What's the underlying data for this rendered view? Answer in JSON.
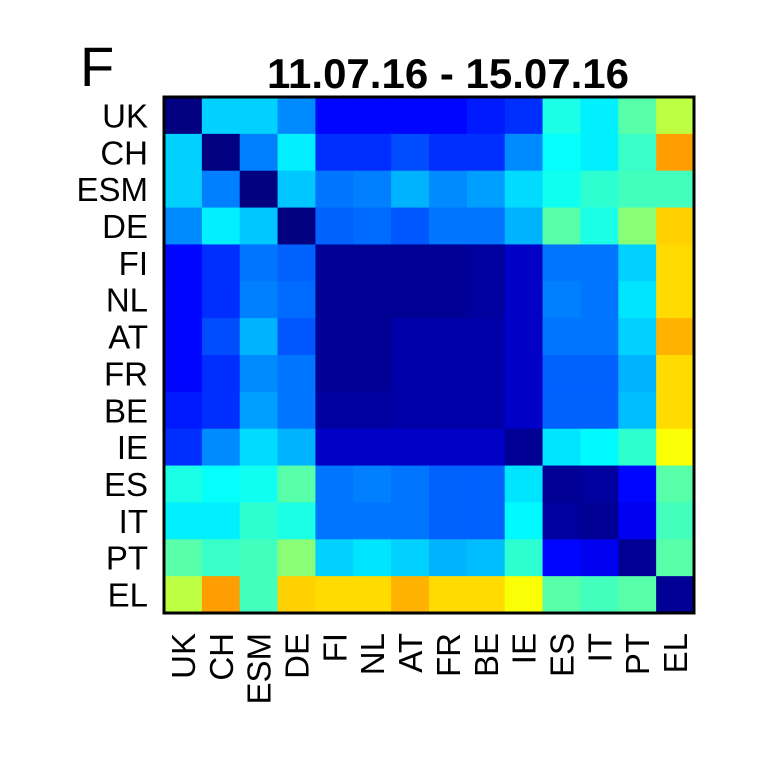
{
  "panel_label": "F",
  "chart_data": {
    "type": "heatmap",
    "title": "11.07.16 - 15.07.16",
    "xlabel": "",
    "ylabel": "",
    "categories": [
      "UK",
      "CH",
      "ESM",
      "DE",
      "FI",
      "NL",
      "AT",
      "FR",
      "BE",
      "IE",
      "ES",
      "IT",
      "PT",
      "EL"
    ],
    "colormap": "jet",
    "value_range": [
      0,
      1
    ],
    "colorbar": false,
    "grid": false,
    "matrix": [
      [
        0.0,
        0.33,
        0.33,
        0.26,
        0.13,
        0.13,
        0.13,
        0.13,
        0.15,
        0.17,
        0.4,
        0.36,
        0.46,
        0.56
      ],
      [
        0.33,
        0.0,
        0.25,
        0.36,
        0.17,
        0.17,
        0.2,
        0.17,
        0.17,
        0.26,
        0.38,
        0.36,
        0.43,
        0.72
      ],
      [
        0.33,
        0.25,
        0.0,
        0.32,
        0.24,
        0.25,
        0.3,
        0.26,
        0.28,
        0.34,
        0.39,
        0.42,
        0.44,
        0.44
      ],
      [
        0.26,
        0.36,
        0.32,
        0.0,
        0.22,
        0.23,
        0.21,
        0.24,
        0.24,
        0.3,
        0.46,
        0.4,
        0.51,
        0.67
      ],
      [
        0.13,
        0.17,
        0.24,
        0.22,
        0.02,
        0.02,
        0.02,
        0.02,
        0.03,
        0.07,
        0.24,
        0.24,
        0.33,
        0.66
      ],
      [
        0.13,
        0.17,
        0.25,
        0.23,
        0.02,
        0.02,
        0.02,
        0.02,
        0.03,
        0.07,
        0.25,
        0.24,
        0.35,
        0.66
      ],
      [
        0.13,
        0.2,
        0.3,
        0.21,
        0.02,
        0.02,
        0.04,
        0.04,
        0.04,
        0.07,
        0.24,
        0.24,
        0.33,
        0.7
      ],
      [
        0.13,
        0.17,
        0.26,
        0.24,
        0.02,
        0.02,
        0.04,
        0.04,
        0.04,
        0.07,
        0.22,
        0.22,
        0.3,
        0.66
      ],
      [
        0.15,
        0.17,
        0.28,
        0.24,
        0.03,
        0.03,
        0.04,
        0.04,
        0.04,
        0.07,
        0.22,
        0.22,
        0.31,
        0.66
      ],
      [
        0.17,
        0.26,
        0.34,
        0.3,
        0.07,
        0.07,
        0.07,
        0.07,
        0.07,
        0.02,
        0.35,
        0.37,
        0.42,
        0.62
      ],
      [
        0.4,
        0.38,
        0.39,
        0.46,
        0.24,
        0.25,
        0.24,
        0.22,
        0.22,
        0.35,
        0.02,
        0.03,
        0.13,
        0.46
      ],
      [
        0.36,
        0.36,
        0.42,
        0.4,
        0.24,
        0.24,
        0.24,
        0.22,
        0.22,
        0.37,
        0.03,
        0.02,
        0.11,
        0.44
      ],
      [
        0.46,
        0.43,
        0.44,
        0.51,
        0.33,
        0.35,
        0.33,
        0.3,
        0.31,
        0.42,
        0.13,
        0.11,
        0.02,
        0.46
      ],
      [
        0.56,
        0.72,
        0.44,
        0.67,
        0.66,
        0.66,
        0.7,
        0.66,
        0.66,
        0.62,
        0.46,
        0.44,
        0.46,
        0.02
      ]
    ]
  }
}
